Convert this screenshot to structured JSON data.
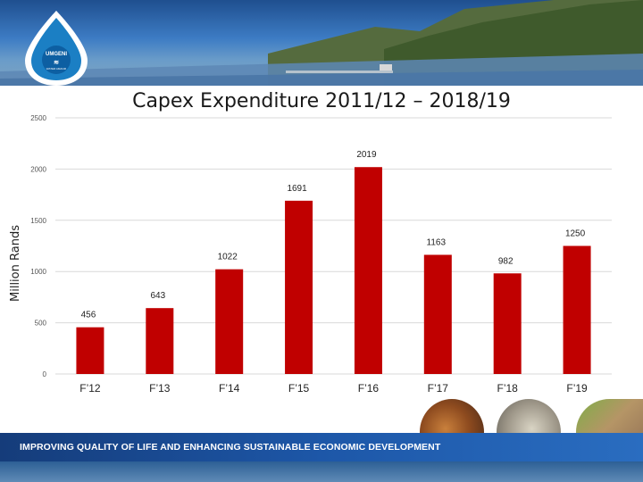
{
  "slide": {
    "title": "Capex Expenditure 2011/12 – 2018/19",
    "footer_text": "IMPROVING QUALITY OF LIFE  AND ENHANCING SUSTAINABLE ECONOMIC DEVELOPMENT",
    "logo_text": "UMGENI",
    "logo_subtext": "WATER AMANZI"
  },
  "chart_data": {
    "type": "bar",
    "title": "Capex Expenditure 2011/12 – 2018/19",
    "xlabel": "",
    "ylabel": "Million Rands",
    "categories": [
      "F’12",
      "F’13",
      "F’14",
      "F’15",
      "F’16",
      "F’17",
      "F’18",
      "F’19"
    ],
    "values": [
      456,
      643,
      1022,
      1691,
      2019,
      1163,
      982,
      1250
    ],
    "data_labels": [
      "456",
      "643",
      "1022",
      "1691",
      "2019",
      "1163",
      "982",
      "1250"
    ],
    "ylim": [
      0,
      2500
    ],
    "yticks": [
      0,
      500,
      1000,
      1500,
      2000,
      2500
    ],
    "ytick_labels": [
      "0",
      "500",
      "1000",
      "1500",
      "2000",
      "2500"
    ],
    "grid": true,
    "legend": "none",
    "colors": {
      "bar": "#c00000",
      "grid": "#d9d9d9",
      "text": "#222222"
    }
  }
}
